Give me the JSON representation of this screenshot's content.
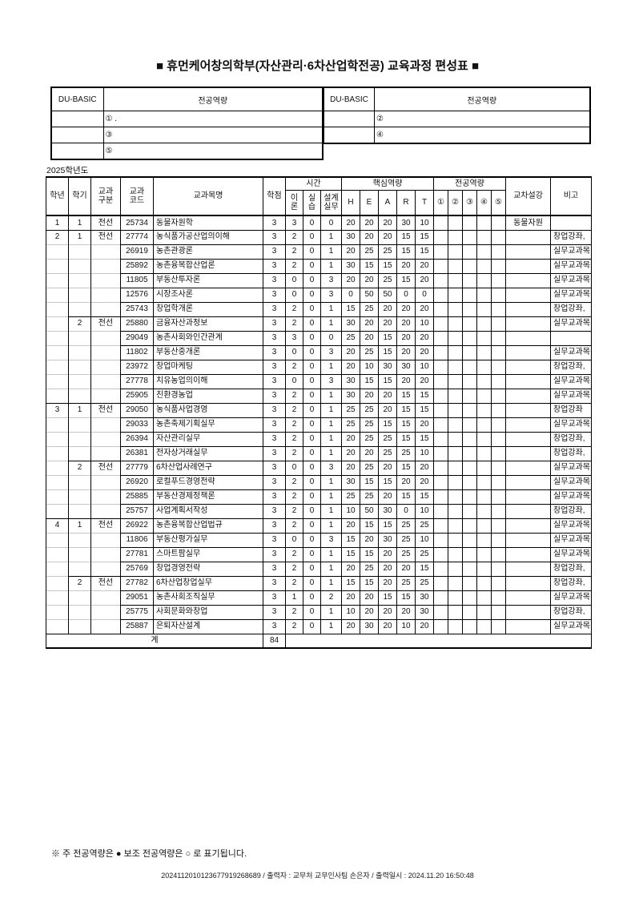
{
  "page": {
    "title": "■ 휴먼케어창의학부(자산관리·6차산업학전공) 교육과정 편성표 ■",
    "year_label": "2025학년도",
    "footnote": "※ 주 전공역량은 ● 보조 전공역량은 ○ 로 표기됩니다.",
    "print_line": "2024112010123677919268689 / 출력자 : 교무처 교무인사팀 손은자 / 출력일시 : 2024.11.20 16:50:48"
  },
  "competency_table": {
    "du_basic_label": "DU-BASIC",
    "major_label": "전공역량",
    "left_rows": [
      "① .",
      "③",
      "⑤"
    ],
    "right_rows": [
      "②",
      "④"
    ]
  },
  "main_table": {
    "headers": {
      "year": "학년",
      "sem": "학기",
      "cat": "교과\n구분",
      "code": "교과\n코드",
      "name": "교과목명",
      "credit": "학점",
      "time_group": "시간",
      "theory": "이\n론",
      "lab": "실\n습",
      "design": "설계\n실무",
      "core_group": "핵심역량",
      "h": "H",
      "e": "E",
      "a": "A",
      "r": "R",
      "t": "T",
      "major_group": "전공역량",
      "m1": "①",
      "m2": "②",
      "m3": "③",
      "m4": "④",
      "m5": "⑤",
      "cross": "교차설강",
      "note": "비고"
    },
    "rows": [
      {
        "year": "1",
        "sem": "1",
        "cat": "전선",
        "code": "25734",
        "name": "동물자원학",
        "credit": "3",
        "theory": "3",
        "lab": "0",
        "design": "0",
        "H": "20",
        "E": "20",
        "A": "20",
        "R": "30",
        "T": "10",
        "cross": "동물자원",
        "note": ""
      },
      {
        "year": "2",
        "sem": "1",
        "cat": "전선",
        "code": "27774",
        "name": "농식품가공산업의이해",
        "credit": "3",
        "theory": "2",
        "lab": "0",
        "design": "1",
        "H": "30",
        "E": "20",
        "A": "20",
        "R": "15",
        "T": "15",
        "cross": "",
        "note": "창업강좌,"
      },
      {
        "year": "",
        "sem": "",
        "cat": "",
        "code": "26919",
        "name": "농촌관광론",
        "credit": "3",
        "theory": "2",
        "lab": "0",
        "design": "1",
        "H": "20",
        "E": "25",
        "A": "25",
        "R": "15",
        "T": "15",
        "cross": "",
        "note": "실무교과목"
      },
      {
        "year": "",
        "sem": "",
        "cat": "",
        "code": "25892",
        "name": "농촌융복합산업론",
        "credit": "3",
        "theory": "2",
        "lab": "0",
        "design": "1",
        "H": "30",
        "E": "15",
        "A": "15",
        "R": "20",
        "T": "20",
        "cross": "",
        "note": "실무교과목"
      },
      {
        "year": "",
        "sem": "",
        "cat": "",
        "code": "11805",
        "name": "부동산투자론",
        "credit": "3",
        "theory": "0",
        "lab": "0",
        "design": "3",
        "H": "20",
        "E": "20",
        "A": "25",
        "R": "15",
        "T": "20",
        "cross": "",
        "note": "실무교과목"
      },
      {
        "year": "",
        "sem": "",
        "cat": "",
        "code": "12576",
        "name": "시장조사론",
        "credit": "3",
        "theory": "0",
        "lab": "0",
        "design": "3",
        "H": "0",
        "E": "50",
        "A": "50",
        "R": "0",
        "T": "0",
        "cross": "",
        "note": "실무교과목"
      },
      {
        "year": "",
        "sem": "",
        "cat": "",
        "code": "25743",
        "name": "창업학개론",
        "credit": "3",
        "theory": "2",
        "lab": "0",
        "design": "1",
        "H": "15",
        "E": "25",
        "A": "20",
        "R": "20",
        "T": "20",
        "cross": "",
        "note": "창업강좌,"
      },
      {
        "year": "",
        "sem": "2",
        "cat": "전선",
        "code": "25880",
        "name": "금융자산과정보",
        "credit": "3",
        "theory": "2",
        "lab": "0",
        "design": "1",
        "H": "30",
        "E": "20",
        "A": "20",
        "R": "20",
        "T": "10",
        "cross": "",
        "note": "실무교과목"
      },
      {
        "year": "",
        "sem": "",
        "cat": "",
        "code": "29049",
        "name": "농촌사회와인간관계",
        "credit": "3",
        "theory": "3",
        "lab": "0",
        "design": "0",
        "H": "25",
        "E": "20",
        "A": "15",
        "R": "20",
        "T": "20",
        "cross": "",
        "note": ""
      },
      {
        "year": "",
        "sem": "",
        "cat": "",
        "code": "11802",
        "name": "부동산중개론",
        "credit": "3",
        "theory": "0",
        "lab": "0",
        "design": "3",
        "H": "20",
        "E": "25",
        "A": "15",
        "R": "20",
        "T": "20",
        "cross": "",
        "note": "실무교과목"
      },
      {
        "year": "",
        "sem": "",
        "cat": "",
        "code": "23972",
        "name": "창업마케팅",
        "credit": "3",
        "theory": "2",
        "lab": "0",
        "design": "1",
        "H": "20",
        "E": "10",
        "A": "30",
        "R": "30",
        "T": "10",
        "cross": "",
        "note": "창업강좌,"
      },
      {
        "year": "",
        "sem": "",
        "cat": "",
        "code": "27778",
        "name": "치유농업의이해",
        "credit": "3",
        "theory": "0",
        "lab": "0",
        "design": "3",
        "H": "30",
        "E": "15",
        "A": "15",
        "R": "20",
        "T": "20",
        "cross": "",
        "note": "실무교과목"
      },
      {
        "year": "",
        "sem": "",
        "cat": "",
        "code": "25905",
        "name": "친환경농업",
        "credit": "3",
        "theory": "2",
        "lab": "0",
        "design": "1",
        "H": "30",
        "E": "20",
        "A": "20",
        "R": "15",
        "T": "15",
        "cross": "",
        "note": "실무교과목"
      },
      {
        "year": "3",
        "sem": "1",
        "cat": "전선",
        "code": "29050",
        "name": "농식품사업경영",
        "credit": "3",
        "theory": "2",
        "lab": "0",
        "design": "1",
        "H": "25",
        "E": "25",
        "A": "20",
        "R": "15",
        "T": "15",
        "cross": "",
        "note": "창업강좌"
      },
      {
        "year": "",
        "sem": "",
        "cat": "",
        "code": "29033",
        "name": "농촌축제기획실무",
        "credit": "3",
        "theory": "2",
        "lab": "0",
        "design": "1",
        "H": "25",
        "E": "25",
        "A": "15",
        "R": "15",
        "T": "20",
        "cross": "",
        "note": "실무교과목"
      },
      {
        "year": "",
        "sem": "",
        "cat": "",
        "code": "26394",
        "name": "자산관리실무",
        "credit": "3",
        "theory": "2",
        "lab": "0",
        "design": "1",
        "H": "20",
        "E": "25",
        "A": "25",
        "R": "15",
        "T": "15",
        "cross": "",
        "note": "창업강좌,"
      },
      {
        "year": "",
        "sem": "",
        "cat": "",
        "code": "26381",
        "name": "전자상거래실무",
        "credit": "3",
        "theory": "2",
        "lab": "0",
        "design": "1",
        "H": "20",
        "E": "20",
        "A": "25",
        "R": "25",
        "T": "10",
        "cross": "",
        "note": "창업강좌,"
      },
      {
        "year": "",
        "sem": "2",
        "cat": "전선",
        "code": "27779",
        "name": "6차산업사례연구",
        "credit": "3",
        "theory": "0",
        "lab": "0",
        "design": "3",
        "H": "20",
        "E": "25",
        "A": "20",
        "R": "15",
        "T": "20",
        "cross": "",
        "note": "실무교과목"
      },
      {
        "year": "",
        "sem": "",
        "cat": "",
        "code": "26920",
        "name": "로컬푸드경영전략",
        "credit": "3",
        "theory": "2",
        "lab": "0",
        "design": "1",
        "H": "30",
        "E": "15",
        "A": "15",
        "R": "20",
        "T": "20",
        "cross": "",
        "note": "실무교과목"
      },
      {
        "year": "",
        "sem": "",
        "cat": "",
        "code": "25885",
        "name": "부동산경제정책론",
        "credit": "3",
        "theory": "2",
        "lab": "0",
        "design": "1",
        "H": "25",
        "E": "25",
        "A": "20",
        "R": "15",
        "T": "15",
        "cross": "",
        "note": "실무교과목"
      },
      {
        "year": "",
        "sem": "",
        "cat": "",
        "code": "25757",
        "name": "사업계획서작성",
        "credit": "3",
        "theory": "2",
        "lab": "0",
        "design": "1",
        "H": "10",
        "E": "50",
        "A": "30",
        "R": "0",
        "T": "10",
        "cross": "",
        "note": "창업강좌,"
      },
      {
        "year": "4",
        "sem": "1",
        "cat": "전선",
        "code": "26922",
        "name": "농촌융복합산업법규",
        "credit": "3",
        "theory": "2",
        "lab": "0",
        "design": "1",
        "H": "20",
        "E": "15",
        "A": "15",
        "R": "25",
        "T": "25",
        "cross": "",
        "note": "실무교과목"
      },
      {
        "year": "",
        "sem": "",
        "cat": "",
        "code": "11806",
        "name": "부동산평가실무",
        "credit": "3",
        "theory": "0",
        "lab": "0",
        "design": "3",
        "H": "15",
        "E": "20",
        "A": "30",
        "R": "25",
        "T": "10",
        "cross": "",
        "note": "실무교과목"
      },
      {
        "year": "",
        "sem": "",
        "cat": "",
        "code": "27781",
        "name": "스마트팜실무",
        "credit": "3",
        "theory": "2",
        "lab": "0",
        "design": "1",
        "H": "15",
        "E": "15",
        "A": "20",
        "R": "25",
        "T": "25",
        "cross": "",
        "note": "실무교과목"
      },
      {
        "year": "",
        "sem": "",
        "cat": "",
        "code": "25769",
        "name": "창업경영전략",
        "credit": "3",
        "theory": "2",
        "lab": "0",
        "design": "1",
        "H": "20",
        "E": "25",
        "A": "20",
        "R": "20",
        "T": "15",
        "cross": "",
        "note": "창업강좌,"
      },
      {
        "year": "",
        "sem": "2",
        "cat": "전선",
        "code": "27782",
        "name": "6차산업창업실무",
        "credit": "3",
        "theory": "2",
        "lab": "0",
        "design": "1",
        "H": "15",
        "E": "15",
        "A": "20",
        "R": "25",
        "T": "25",
        "cross": "",
        "note": "창업강좌,"
      },
      {
        "year": "",
        "sem": "",
        "cat": "",
        "code": "29051",
        "name": "농촌사회조직실무",
        "credit": "3",
        "theory": "1",
        "lab": "0",
        "design": "2",
        "H": "20",
        "E": "20",
        "A": "15",
        "R": "15",
        "T": "30",
        "cross": "",
        "note": "실무교과목"
      },
      {
        "year": "",
        "sem": "",
        "cat": "",
        "code": "25775",
        "name": "사회문화와창업",
        "credit": "3",
        "theory": "2",
        "lab": "0",
        "design": "1",
        "H": "10",
        "E": "20",
        "A": "20",
        "R": "20",
        "T": "30",
        "cross": "",
        "note": "창업강좌,"
      },
      {
        "year": "",
        "sem": "",
        "cat": "",
        "code": "25887",
        "name": "은퇴자산설계",
        "credit": "3",
        "theory": "2",
        "lab": "0",
        "design": "1",
        "H": "20",
        "E": "30",
        "A": "20",
        "R": "10",
        "T": "20",
        "cross": "",
        "note": "실무교과목"
      }
    ],
    "total": {
      "label": "계",
      "credits": "84"
    }
  },
  "colors": {
    "border_dark": "#000000",
    "border_light": "#c6c6c6",
    "background": "#ffffff"
  }
}
